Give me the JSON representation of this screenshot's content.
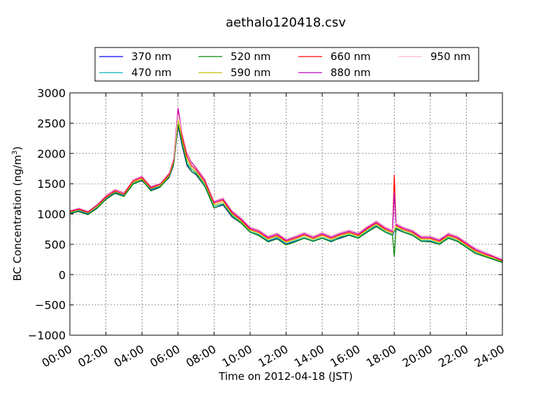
{
  "chart_data": {
    "type": "line",
    "title": "aethalo120418.csv",
    "xlabel": "Time on 2012-04-18 (JST)",
    "ylabel_main": "BC Concentration (ng/m",
    "ylabel_sup": "3",
    "ylabel_close": ")",
    "xlim": [
      "00:00",
      "24:00"
    ],
    "ylim": [
      -1000,
      3000
    ],
    "xticks": [
      "00:00",
      "02:00",
      "04:00",
      "06:00",
      "08:00",
      "10:00",
      "12:00",
      "14:00",
      "16:00",
      "18:00",
      "20:00",
      "22:00",
      "24:00"
    ],
    "yticks": [
      -1000,
      -500,
      0,
      500,
      1000,
      1500,
      2000,
      2500,
      3000
    ],
    "grid": true,
    "legend_position": "top-center",
    "x_hours": [
      0,
      0.5,
      1,
      1.5,
      2,
      2.5,
      3,
      3.5,
      4,
      4.5,
      5,
      5.5,
      5.75,
      6,
      6.25,
      6.5,
      6.75,
      7,
      7.5,
      8,
      8.5,
      9,
      9.5,
      10,
      10.5,
      11,
      11.5,
      12,
      12.5,
      13,
      13.5,
      14,
      14.5,
      15,
      15.5,
      16,
      16.5,
      17,
      17.5,
      17.9,
      18,
      18.1,
      18.5,
      19,
      19.5,
      20,
      20.5,
      21,
      21.5,
      22,
      22.5,
      23,
      23.5,
      24
    ],
    "series": [
      {
        "name": "370 nm",
        "color": "#0000ff",
        "values": [
          1000,
          1050,
          1000,
          1100,
          1250,
          1350,
          1300,
          1500,
          1550,
          1400,
          1450,
          1600,
          1800,
          2450,
          2100,
          1800,
          1700,
          1650,
          1450,
          1100,
          1150,
          950,
          850,
          700,
          650,
          550,
          600,
          500,
          550,
          600,
          550,
          600,
          550,
          600,
          650,
          600,
          700,
          800,
          700,
          650,
          700,
          750,
          700,
          650,
          550,
          550,
          500,
          600,
          550,
          450,
          350,
          300,
          250,
          200
        ]
      },
      {
        "name": "470 nm",
        "color": "#00b2b2",
        "values": [
          1020,
          1060,
          1010,
          1110,
          1260,
          1360,
          1310,
          1510,
          1560,
          1410,
          1460,
          1620,
          1820,
          2500,
          2150,
          1850,
          1730,
          1680,
          1480,
          1130,
          1170,
          980,
          860,
          710,
          660,
          560,
          610,
          510,
          560,
          610,
          560,
          610,
          560,
          620,
          660,
          610,
          720,
          810,
          710,
          660,
          710,
          770,
          710,
          660,
          560,
          560,
          510,
          610,
          560,
          460,
          360,
          310,
          260,
          210
        ]
      },
      {
        "name": "520 nm",
        "color": "#008000",
        "values": [
          1010,
          1040,
          990,
          1090,
          1240,
          1340,
          1290,
          1490,
          1560,
          1380,
          1440,
          1610,
          1810,
          2480,
          2120,
          1820,
          1700,
          1660,
          1450,
          1100,
          1160,
          960,
          850,
          700,
          640,
          540,
          590,
          490,
          540,
          600,
          550,
          600,
          540,
          610,
          650,
          600,
          700,
          790,
          700,
          650,
          300,
          760,
          700,
          650,
          550,
          540,
          500,
          600,
          550,
          450,
          350,
          300,
          250,
          200
        ]
      },
      {
        "name": "590 nm",
        "color": "#bfbf00",
        "values": [
          1030,
          1070,
          1020,
          1120,
          1270,
          1370,
          1320,
          1520,
          1580,
          1420,
          1470,
          1630,
          1850,
          2550,
          2200,
          1900,
          1760,
          1700,
          1500,
          1150,
          1200,
          1000,
          880,
          730,
          680,
          580,
          630,
          530,
          580,
          640,
          580,
          640,
          580,
          640,
          680,
          630,
          740,
          830,
          730,
          680,
          730,
          790,
          730,
          680,
          580,
          580,
          530,
          630,
          580,
          480,
          380,
          320,
          270,
          220
        ]
      },
      {
        "name": "660 nm",
        "color": "#ff0000",
        "values": [
          1040,
          1080,
          1030,
          1140,
          1280,
          1380,
          1330,
          1540,
          1600,
          1430,
          1490,
          1650,
          1880,
          2700,
          2250,
          1950,
          1800,
          1730,
          1530,
          1180,
          1230,
          1020,
          900,
          750,
          700,
          600,
          650,
          550,
          600,
          660,
          600,
          660,
          600,
          660,
          700,
          650,
          760,
          850,
          750,
          700,
          1650,
          810,
          750,
          700,
          600,
          600,
          550,
          650,
          600,
          500,
          400,
          340,
          290,
          230
        ]
      },
      {
        "name": "880 nm",
        "color": "#bf00bf",
        "values": [
          1050,
          1090,
          1040,
          1150,
          1300,
          1400,
          1350,
          1560,
          1620,
          1450,
          1500,
          1670,
          1900,
          2750,
          2300,
          2000,
          1850,
          1760,
          1560,
          1200,
          1250,
          1040,
          920,
          770,
          720,
          620,
          670,
          570,
          620,
          680,
          620,
          680,
          620,
          680,
          720,
          670,
          780,
          870,
          770,
          720,
          1350,
          830,
          770,
          720,
          620,
          620,
          570,
          670,
          620,
          520,
          420,
          360,
          300,
          240
        ]
      },
      {
        "name": "950 nm",
        "color": "#ffb6c1",
        "values": [
          1060,
          1100,
          1050,
          1160,
          1310,
          1410,
          1360,
          1570,
          1630,
          1460,
          1510,
          1680,
          1920,
          2650,
          2320,
          2020,
          1870,
          1780,
          1580,
          1220,
          1270,
          1060,
          940,
          790,
          740,
          640,
          690,
          590,
          640,
          700,
          640,
          700,
          640,
          700,
          740,
          690,
          800,
          890,
          790,
          740,
          800,
          850,
          790,
          740,
          640,
          640,
          590,
          690,
          640,
          540,
          440,
          380,
          320,
          260
        ]
      }
    ]
  }
}
